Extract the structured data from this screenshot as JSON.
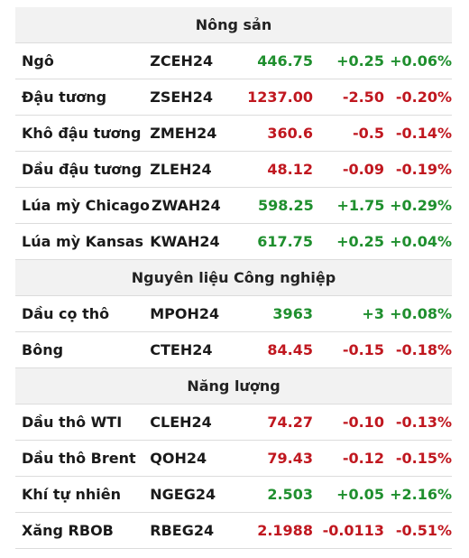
{
  "colors": {
    "up": "#1f8f2e",
    "down": "#c0171f",
    "header_bg": "#f2f2f2"
  },
  "sections": [
    {
      "title": "Nông sản",
      "rows": [
        {
          "name": "Ngô",
          "code": "ZCEH24",
          "price": "446.75",
          "change": "+0.25",
          "pct": "+0.06%",
          "trend": "up"
        },
        {
          "name": "Đậu tương",
          "code": "ZSEH24",
          "price": "1237.00",
          "change": "-2.50",
          "pct": "-0.20%",
          "trend": "down"
        },
        {
          "name": "Khô đậu tương",
          "code": "ZMEH24",
          "price": "360.6",
          "change": "-0.5",
          "pct": "-0.14%",
          "trend": "down"
        },
        {
          "name": "Dầu đậu tương",
          "code": "ZLEH24",
          "price": "48.12",
          "change": "-0.09",
          "pct": "-0.19%",
          "trend": "down"
        },
        {
          "name": "Lúa mỳ Chicago",
          "code": "ZWAH24",
          "price": "598.25",
          "change": "+1.75",
          "pct": "+0.29%",
          "trend": "up"
        },
        {
          "name": "Lúa mỳ Kansas",
          "code": "KWAH24",
          "price": "617.75",
          "change": "+0.25",
          "pct": "+0.04%",
          "trend": "up"
        }
      ]
    },
    {
      "title": "Nguyên liệu Công nghiệp",
      "rows": [
        {
          "name": "Dầu cọ thô",
          "code": "MPOH24",
          "price": "3963",
          "change": "+3",
          "pct": "+0.08%",
          "trend": "up"
        },
        {
          "name": "Bông",
          "code": "CTEH24",
          "price": "84.45",
          "change": "-0.15",
          "pct": "-0.18%",
          "trend": "down"
        }
      ]
    },
    {
      "title": "Năng lượng",
      "rows": [
        {
          "name": "Dầu thô WTI",
          "code": "CLEH24",
          "price": "74.27",
          "change": "-0.10",
          "pct": "-0.13%",
          "trend": "down"
        },
        {
          "name": "Dầu thô Brent",
          "code": "QOH24",
          "price": "79.43",
          "change": "-0.12",
          "pct": "-0.15%",
          "trend": "down"
        },
        {
          "name": "Khí tự nhiên",
          "code": "NGEG24",
          "price": "2.503",
          "change": "+0.05",
          "pct": "+2.16%",
          "trend": "up"
        },
        {
          "name": "Xăng RBOB",
          "code": "RBEG24",
          "price": "2.1988",
          "change": "-0.0113",
          "pct": "-0.51%",
          "trend": "down"
        }
      ]
    }
  ]
}
